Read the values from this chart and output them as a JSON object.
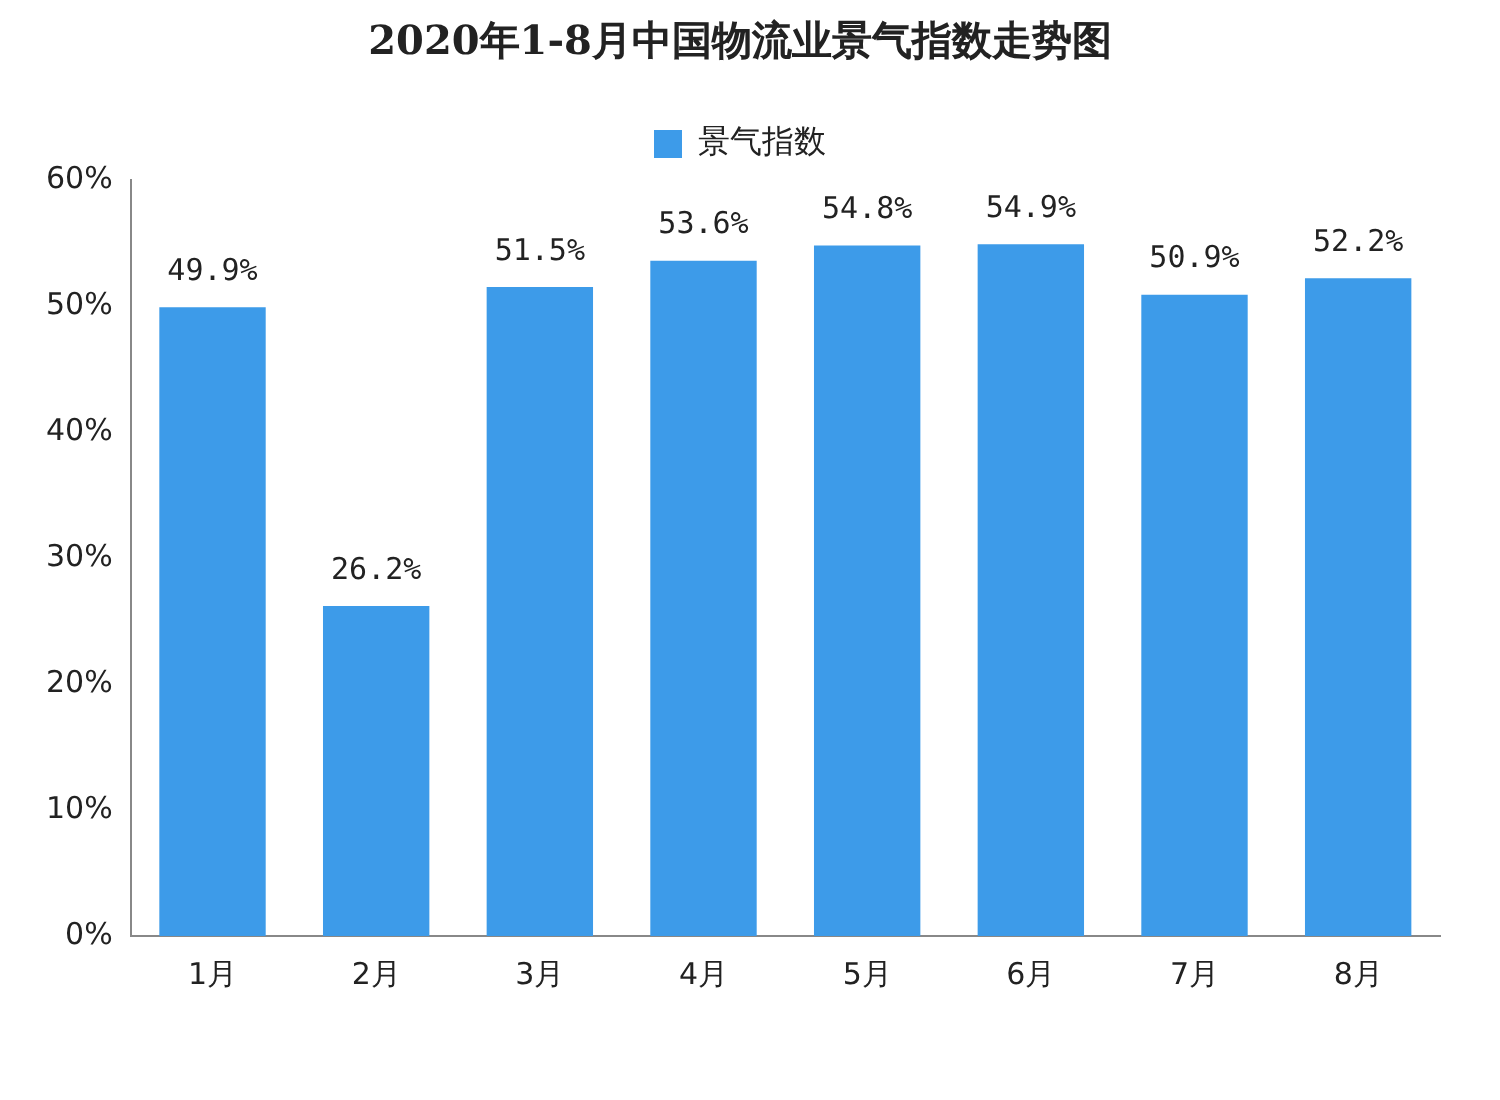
{
  "chart_data": {
    "type": "bar",
    "title": "2020年1-8月中国物流业景气指数走势图",
    "categories": [
      "1月",
      "2月",
      "3月",
      "4月",
      "5月",
      "6月",
      "7月",
      "8月"
    ],
    "series": [
      {
        "name": "景气指数",
        "color": "#3d9be9",
        "values": [
          49.9,
          26.2,
          51.5,
          53.6,
          54.8,
          54.9,
          50.9,
          52.2
        ],
        "value_labels": [
          "49.9%",
          "26.2%",
          "51.5%",
          "53.6%",
          "54.8%",
          "54.9%",
          "50.9%",
          "52.2%"
        ]
      }
    ],
    "ylim": [
      0,
      60
    ],
    "yticks": [
      {
        "value": 0,
        "label": "0%"
      },
      {
        "value": 10,
        "label": "10%"
      },
      {
        "value": 20,
        "label": "20%"
      },
      {
        "value": 30,
        "label": "30%"
      },
      {
        "value": 40,
        "label": "40%"
      },
      {
        "value": 50,
        "label": "50%"
      },
      {
        "value": 60,
        "label": "60%"
      }
    ],
    "grid": false,
    "legend": "top"
  }
}
